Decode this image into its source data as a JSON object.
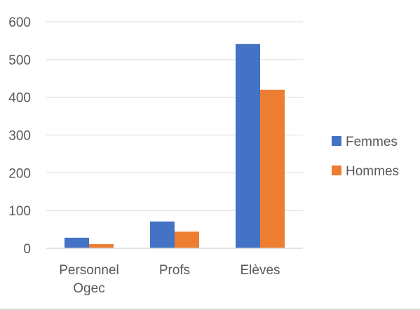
{
  "chart_data": {
    "type": "bar",
    "categories": [
      "Personnel Ogec",
      "Profs",
      "Elèves"
    ],
    "category_lines": [
      [
        "Personnel",
        "Ogec"
      ],
      [
        "Profs"
      ],
      [
        "Elèves"
      ]
    ],
    "series": [
      {
        "name": "Femmes",
        "values": [
          28,
          71,
          541
        ],
        "color": "#4472c4"
      },
      {
        "name": "Hommes",
        "values": [
          11,
          44,
          420
        ],
        "color": "#ed7d31"
      }
    ],
    "ylim": [
      0,
      600
    ],
    "yticks": [
      0,
      100,
      200,
      300,
      400,
      500,
      600
    ],
    "grid": true,
    "legend_position": "right",
    "title": "",
    "xlabel": "",
    "ylabel": ""
  }
}
